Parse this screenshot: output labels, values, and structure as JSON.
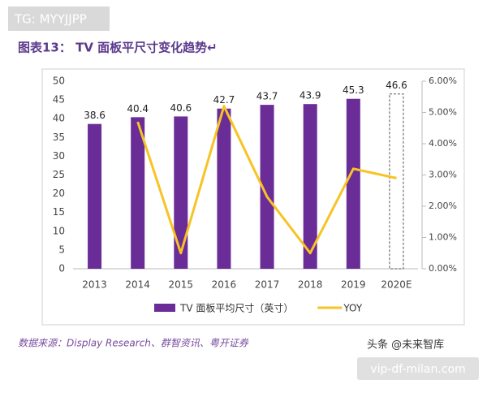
{
  "watermark_top": "TG: MYYJJPP",
  "chart_data": {
    "type": "bar-line",
    "title": "图表13：  TV 面板平尺寸变化趋势↵",
    "categories": [
      "2013",
      "2014",
      "2015",
      "2016",
      "2017",
      "2018",
      "2019",
      "2020E"
    ],
    "series": [
      {
        "name": "TV 面板平均尺寸（英寸）",
        "color": "#6a2c96",
        "type": "bar",
        "values": [
          38.6,
          40.4,
          40.6,
          42.7,
          43.7,
          43.9,
          45.3,
          46.6
        ]
      },
      {
        "name": "YOY",
        "color": "#f7c325",
        "type": "line",
        "axis": "y2",
        "values": [
          null,
          4.7,
          0.5,
          5.2,
          2.3,
          0.5,
          3.2,
          2.9
        ]
      }
    ],
    "ylim": [
      0,
      50
    ],
    "yticks": [
      0,
      5,
      10,
      15,
      20,
      25,
      30,
      35,
      40,
      45,
      50
    ],
    "y2lim": [
      0,
      6
    ],
    "y2ticks": [
      {
        "value": 0,
        "label": "0.00%"
      },
      {
        "value": 1,
        "label": "1.00%"
      },
      {
        "value": 2,
        "label": "2.00%"
      },
      {
        "value": 3,
        "label": "3.00%"
      },
      {
        "value": 4,
        "label": "4.00%"
      },
      {
        "value": 5,
        "label": "5.00%"
      },
      {
        "value": 6,
        "label": "6.00%"
      }
    ],
    "source": "数据来源：Display Research、群智资讯、粤开证券"
  },
  "watermark_account": "头条 @未来智库",
  "watermark_site": "vip-df-milan.com"
}
